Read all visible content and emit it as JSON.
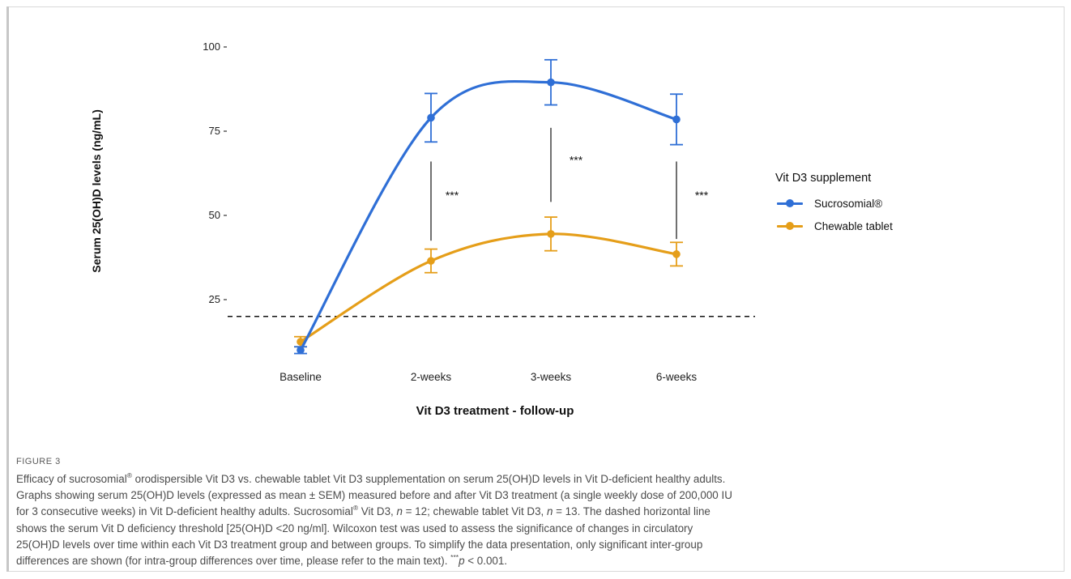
{
  "chart_data": {
    "type": "line",
    "categories": [
      "Baseline",
      "2-weeks",
      "3-weeks",
      "6-weeks"
    ],
    "xlabel": "Vit D3 treatment - follow-up",
    "ylabel": "Serum 25(OH)D levels (ng/mL)",
    "y_ticks": [
      "25",
      "50",
      "75",
      "100"
    ],
    "ylim": [
      7,
      102
    ],
    "grid": false,
    "legend": {
      "title": "Vit D3 supplement",
      "placement": "right"
    },
    "series": [
      {
        "name": "Sucrosomial®",
        "color": "#2f6fd6",
        "values": [
          10,
          79,
          89.5,
          78.5
        ],
        "err": [
          1,
          7.2,
          6.7,
          7.5
        ]
      },
      {
        "name": "Chewable tablet",
        "color": "#e59e19",
        "values": [
          12.5,
          36.5,
          44.5,
          38.5
        ],
        "err": [
          1.5,
          3.5,
          5,
          3.5
        ]
      }
    ],
    "threshold": {
      "value": 20,
      "style": "dashed"
    },
    "annotations": [
      {
        "category": "2-weeks",
        "label": "***"
      },
      {
        "category": "3-weeks",
        "label": "***"
      },
      {
        "category": "6-weeks",
        "label": "***"
      }
    ]
  },
  "caption": {
    "label": "FIGURE 3",
    "line1_a": "Efficacy of sucrosomial",
    "reg": "®",
    "line1_b": " orodispersible Vit D3 vs. chewable tablet Vit D3 supplementation on serum 25(OH)D levels in Vit D-deficient healthy adults.",
    "line2": "Graphs showing serum 25(OH)D levels (expressed as mean ± SEM) measured before and after Vit D3 treatment (a single weekly dose of 200,000 IU",
    "line3_a": "for 3 consecutive weeks) in Vit D-deficient healthy adults. Sucrosomial",
    "line3_b": " Vit D3, ",
    "n_var": "n",
    "eq_12": " = 12; chewable tablet Vit D3, ",
    "eq_13": " = 13. The dashed horizontal line",
    "line4": "shows the serum Vit D deficiency threshold [25(OH)D <20 ng/ml]. Wilcoxon test was used to assess the significance of changes in circulatory",
    "line5": "25(OH)D levels over time within each Vit D3 treatment group and between groups. To simplify the data presentation, only significant inter-group",
    "line6": "differences are shown (for intra-group differences over time, please refer to the main text). ",
    "stars": "***",
    "p_var": "p",
    "p_val": " < 0.001."
  }
}
